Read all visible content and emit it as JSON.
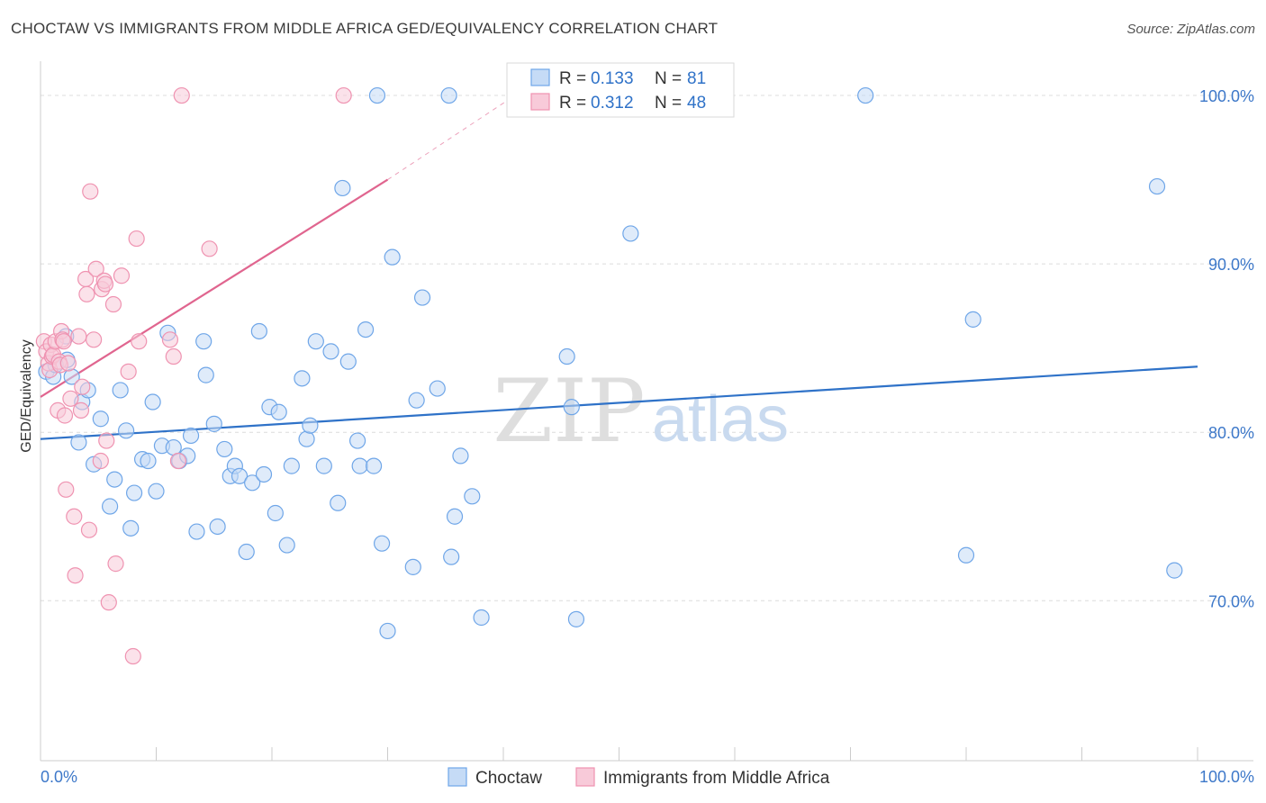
{
  "title": "CHOCTAW VS IMMIGRANTS FROM MIDDLE AFRICA GED/EQUIVALENCY CORRELATION CHART",
  "source": "Source: ZipAtlas.com",
  "watermark": {
    "zip": "ZIP",
    "atlas": "atlas"
  },
  "chart_data": {
    "type": "scatter",
    "title": "CHOCTAW VS IMMIGRANTS FROM MIDDLE AFRICA GED/EQUIVALENCY CORRELATION CHART",
    "xlabel": "",
    "ylabel": "GED/Equivalency",
    "xlim": [
      0,
      100
    ],
    "ylim": [
      60.5,
      101.5
    ],
    "x_tick_labels": {
      "left": "0.0%",
      "right": "100.0%"
    },
    "y_ticks": [
      {
        "value": 100,
        "label": "100.0%"
      },
      {
        "value": 90,
        "label": "90.0%"
      },
      {
        "value": 80,
        "label": "80.0%"
      },
      {
        "value": 70,
        "label": "70.0%"
      }
    ],
    "legend": {
      "position": "top-center",
      "r_label": "R =",
      "n_label": "N =",
      "entries": [
        {
          "name": "Choctaw",
          "r": "0.133",
          "n": "81"
        },
        {
          "name": "Immigrants from Middle Africa",
          "r": "0.312",
          "n": "48"
        }
      ]
    },
    "series": [
      {
        "name": "Choctaw",
        "color": "#6fa6e8",
        "fill": "#c5dbf6",
        "line_color": "#2f72c8",
        "trend": {
          "x0": 0,
          "y0": 79.6,
          "x1": 100,
          "y1": 83.9
        },
        "points": [
          [
            0.5,
            83.6
          ],
          [
            1.1,
            83.3
          ],
          [
            2.2,
            85.7
          ],
          [
            2.3,
            84.3
          ],
          [
            2.7,
            83.3
          ],
          [
            3.3,
            79.4
          ],
          [
            3.6,
            81.8
          ],
          [
            4.1,
            82.5
          ],
          [
            4.6,
            78.1
          ],
          [
            5.2,
            80.8
          ],
          [
            6.0,
            75.6
          ],
          [
            6.4,
            77.2
          ],
          [
            6.9,
            82.5
          ],
          [
            7.4,
            80.1
          ],
          [
            7.8,
            74.3
          ],
          [
            8.1,
            76.4
          ],
          [
            8.8,
            78.4
          ],
          [
            9.3,
            78.3
          ],
          [
            9.7,
            81.8
          ],
          [
            10.0,
            76.5
          ],
          [
            10.5,
            79.2
          ],
          [
            11.0,
            85.9
          ],
          [
            11.5,
            79.1
          ],
          [
            12.0,
            78.3
          ],
          [
            12.7,
            78.6
          ],
          [
            13.0,
            79.8
          ],
          [
            13.5,
            74.1
          ],
          [
            14.1,
            85.4
          ],
          [
            14.3,
            83.4
          ],
          [
            15.0,
            80.5
          ],
          [
            15.3,
            74.4
          ],
          [
            15.9,
            79.0
          ],
          [
            16.4,
            77.4
          ],
          [
            16.8,
            78.0
          ],
          [
            17.2,
            77.4
          ],
          [
            17.8,
            72.9
          ],
          [
            18.3,
            77.0
          ],
          [
            18.9,
            86.0
          ],
          [
            19.3,
            77.5
          ],
          [
            19.8,
            81.5
          ],
          [
            20.3,
            75.2
          ],
          [
            20.6,
            81.2
          ],
          [
            21.3,
            73.3
          ],
          [
            21.7,
            78.0
          ],
          [
            22.6,
            83.2
          ],
          [
            23.0,
            79.6
          ],
          [
            23.3,
            80.4
          ],
          [
            23.8,
            85.4
          ],
          [
            24.5,
            78.0
          ],
          [
            25.1,
            84.8
          ],
          [
            25.7,
            75.8
          ],
          [
            26.1,
            94.5
          ],
          [
            26.6,
            84.2
          ],
          [
            27.4,
            79.5
          ],
          [
            27.6,
            78.0
          ],
          [
            28.1,
            86.1
          ],
          [
            28.8,
            78.0
          ],
          [
            29.1,
            100.0
          ],
          [
            29.5,
            73.4
          ],
          [
            30.0,
            68.2
          ],
          [
            30.4,
            90.4
          ],
          [
            32.2,
            72.0
          ],
          [
            32.5,
            81.9
          ],
          [
            33.0,
            88.0
          ],
          [
            34.3,
            82.6
          ],
          [
            35.3,
            100.0
          ],
          [
            35.5,
            72.6
          ],
          [
            35.8,
            75.0
          ],
          [
            36.3,
            78.6
          ],
          [
            37.3,
            76.2
          ],
          [
            38.1,
            69.0
          ],
          [
            45.5,
            84.5
          ],
          [
            45.9,
            81.5
          ],
          [
            46.3,
            68.9
          ],
          [
            51.0,
            91.8
          ],
          [
            71.3,
            100.0
          ],
          [
            80.0,
            72.7
          ],
          [
            80.6,
            86.7
          ],
          [
            96.5,
            94.6
          ],
          [
            98.0,
            71.8
          ],
          [
            1.3,
            84.0
          ]
        ]
      },
      {
        "name": "Immigrants from Middle Africa",
        "color": "#ef93b1",
        "fill": "#f8cad9",
        "line_color": "#e0658f",
        "trend": {
          "x0": 0,
          "y0": 82.1,
          "x1": 30,
          "y1": 95.0
        },
        "trend_dashed": {
          "x0": 30,
          "y0": 95.0,
          "x1": 41,
          "y1": 100.0
        },
        "points": [
          [
            0.3,
            85.4
          ],
          [
            0.5,
            84.8
          ],
          [
            0.7,
            84.1
          ],
          [
            0.8,
            83.7
          ],
          [
            0.9,
            85.2
          ],
          [
            1.0,
            84.5
          ],
          [
            1.1,
            84.6
          ],
          [
            1.3,
            85.4
          ],
          [
            1.5,
            81.3
          ],
          [
            1.6,
            84.2
          ],
          [
            1.7,
            84.0
          ],
          [
            1.8,
            86.0
          ],
          [
            1.9,
            85.5
          ],
          [
            2.0,
            85.4
          ],
          [
            2.1,
            81.0
          ],
          [
            2.2,
            76.6
          ],
          [
            2.4,
            84.1
          ],
          [
            2.6,
            82.0
          ],
          [
            2.9,
            75.0
          ],
          [
            3.0,
            71.5
          ],
          [
            3.3,
            85.7
          ],
          [
            3.5,
            81.3
          ],
          [
            3.6,
            82.7
          ],
          [
            3.9,
            89.1
          ],
          [
            4.0,
            88.2
          ],
          [
            4.2,
            74.2
          ],
          [
            4.3,
            94.3
          ],
          [
            4.6,
            85.5
          ],
          [
            4.8,
            89.7
          ],
          [
            5.2,
            78.3
          ],
          [
            5.3,
            88.5
          ],
          [
            5.5,
            89.0
          ],
          [
            5.6,
            88.8
          ],
          [
            5.7,
            79.5
          ],
          [
            5.9,
            69.9
          ],
          [
            6.3,
            87.6
          ],
          [
            6.5,
            72.2
          ],
          [
            7.0,
            89.3
          ],
          [
            7.6,
            83.6
          ],
          [
            8.0,
            66.7
          ],
          [
            8.3,
            91.5
          ],
          [
            8.5,
            85.4
          ],
          [
            11.2,
            85.5
          ],
          [
            11.5,
            84.5
          ],
          [
            11.9,
            78.3
          ],
          [
            12.2,
            100.0
          ],
          [
            14.6,
            90.9
          ],
          [
            26.2,
            100.0
          ]
        ]
      }
    ]
  }
}
